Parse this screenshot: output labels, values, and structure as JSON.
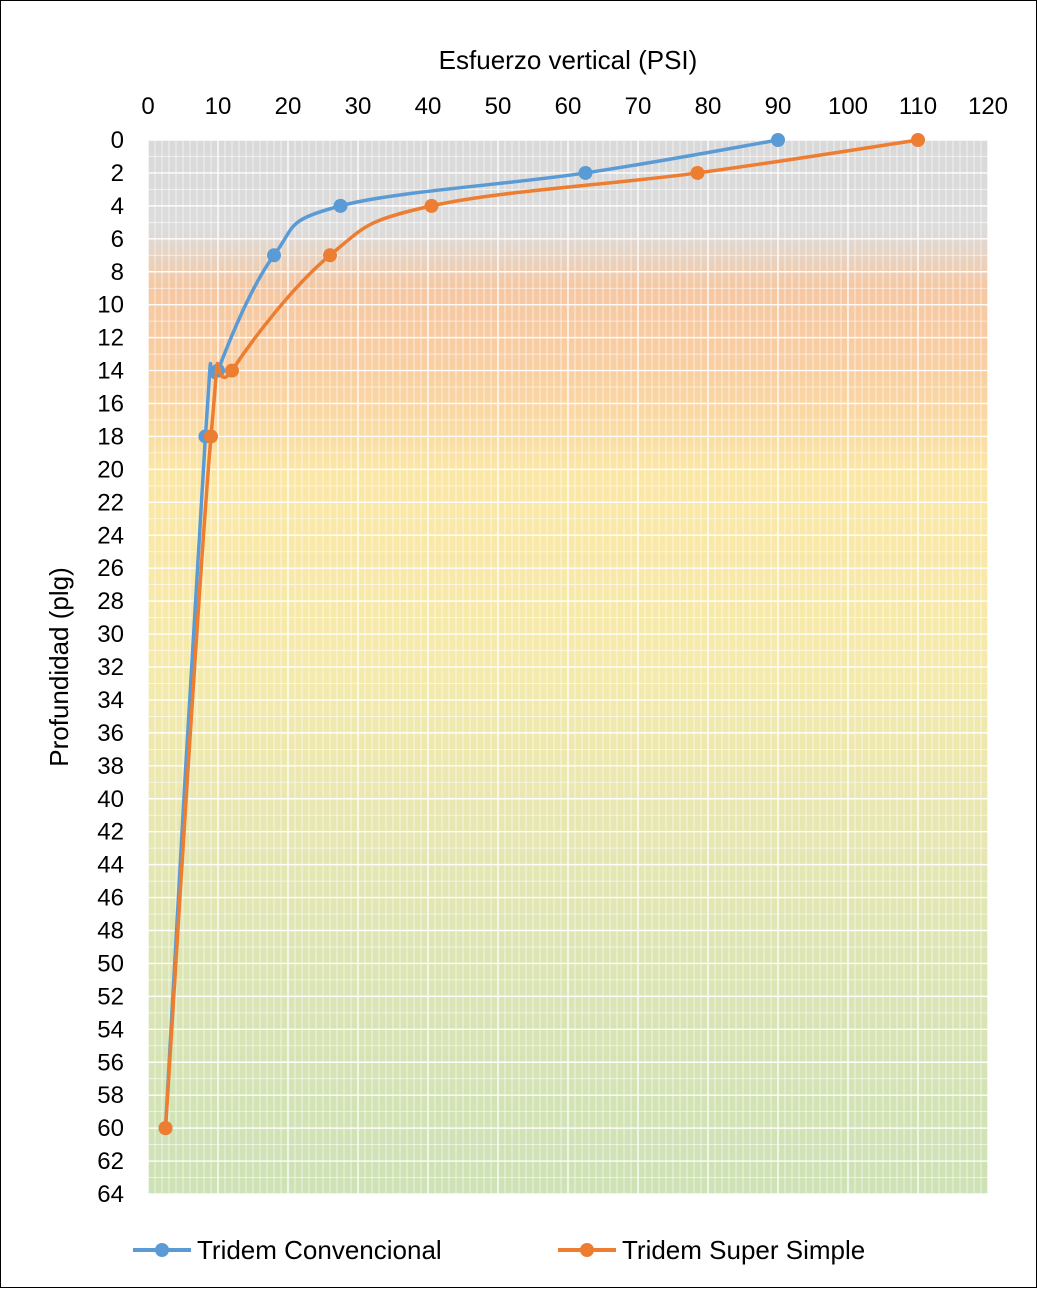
{
  "chart_data": {
    "type": "line",
    "title": "",
    "xlabel": "Esfuerzo vertical (PSI)",
    "ylabel": "Profundidad (plg)",
    "xlim": [
      0,
      120
    ],
    "ylim": [
      0,
      64
    ],
    "x_axis_position": "top",
    "y_axis_reversed": true,
    "x_ticks": [
      0,
      10,
      20,
      30,
      40,
      50,
      60,
      70,
      80,
      90,
      100,
      110,
      120
    ],
    "y_ticks": [
      0,
      2,
      4,
      6,
      8,
      10,
      12,
      14,
      16,
      18,
      20,
      22,
      24,
      26,
      28,
      30,
      32,
      34,
      36,
      38,
      40,
      42,
      44,
      46,
      48,
      50,
      52,
      54,
      56,
      58,
      60,
      62,
      64
    ],
    "grid": true,
    "legend_position": "bottom",
    "series": [
      {
        "name": "Tridem Convencional",
        "color": "#5B9BD5",
        "points": [
          {
            "x": 90,
            "y": 0
          },
          {
            "x": 62.5,
            "y": 2
          },
          {
            "x": 27.5,
            "y": 4
          },
          {
            "x": 18,
            "y": 7
          },
          {
            "x": 10,
            "y": 14
          },
          {
            "x": 8.2,
            "y": 18
          },
          {
            "x": 2.5,
            "y": 60
          }
        ]
      },
      {
        "name": "Tridem Super Simple",
        "color": "#ED7D31",
        "points": [
          {
            "x": 110,
            "y": 0
          },
          {
            "x": 78.5,
            "y": 2
          },
          {
            "x": 40.5,
            "y": 4
          },
          {
            "x": 26,
            "y": 7
          },
          {
            "x": 12,
            "y": 14
          },
          {
            "x": 9,
            "y": 18
          },
          {
            "x": 2.5,
            "y": 60
          }
        ]
      }
    ]
  }
}
